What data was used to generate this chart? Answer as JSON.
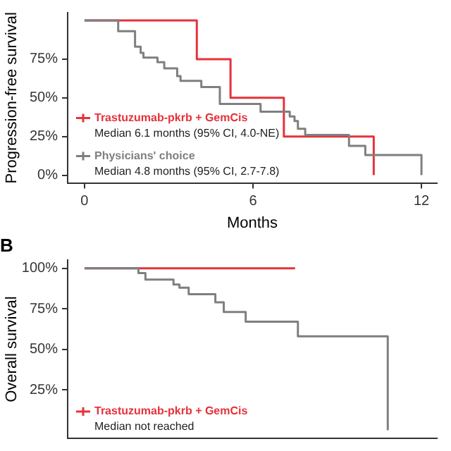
{
  "chart_data": [
    {
      "type": "step",
      "ylabel": "Progression-free survival",
      "xlabel": "Months",
      "xlim": [
        -0.6,
        12.55
      ],
      "xticks": [
        0,
        6,
        12
      ],
      "ylim": [
        -5,
        105
      ],
      "yticks": [
        {
          "value": 0,
          "label": "0%"
        },
        {
          "value": 25,
          "label": "25%"
        },
        {
          "value": 50,
          "label": "50%"
        },
        {
          "value": 75,
          "label": "75%"
        }
      ],
      "grid": false,
      "legend": "bottom left",
      "series": [
        {
          "name": "Trastuzumab-pkrb + GemCis",
          "color": "#e5323b",
          "x": [
            0,
            4.0,
            5.2,
            7.1,
            10.3
          ],
          "values": [
            100,
            75,
            50,
            25,
            0
          ]
        },
        {
          "name": "Physicians' choice",
          "color": "#7f7f7f",
          "x": [
            0,
            1.2,
            1.8,
            2.0,
            2.1,
            2.6,
            2.84,
            3.3,
            3.42,
            4.16,
            4.82,
            6.27,
            7.31,
            7.48,
            7.6,
            7.86,
            9.42,
            10.0,
            12.0
          ],
          "values": [
            100,
            93,
            83,
            79,
            76,
            73,
            69,
            64,
            61,
            57,
            46,
            41,
            38,
            35,
            30,
            26,
            19,
            13,
            0
          ]
        }
      ],
      "annotations": [
        "Median 6.1 months (95% CI, 4.0-NE)",
        "Median 4.8 months (95% CI, 2.7-7.8)"
      ]
    },
    {
      "type": "step",
      "title": "B",
      "ylabel": "Overall survival",
      "xlim": [
        -0.6,
        12.55
      ],
      "ylim": [
        -5,
        105
      ],
      "yticks": [
        {
          "value": 25,
          "label": "25%"
        },
        {
          "value": 50,
          "label": "50%"
        },
        {
          "value": 75,
          "label": "75%"
        },
        {
          "value": 100,
          "label": "100%"
        }
      ],
      "grid": false,
      "legend": "bottom left",
      "tick_labels": "y",
      "series": [
        {
          "name": "Trastuzumab-pkrb + GemCis",
          "color": "#e5323b",
          "x": [
            0,
            7.5
          ],
          "values": [
            100,
            100
          ]
        },
        {
          "color": "#7f7f7f",
          "x": [
            0,
            1.92,
            2.17,
            3.17,
            3.38,
            3.71,
            4.66,
            4.96,
            5.74,
            7.6,
            10.8
          ],
          "values": [
            100,
            97,
            93,
            90,
            88,
            84,
            79,
            73,
            67,
            58,
            0
          ]
        }
      ],
      "annotations": [
        "Median not reached"
      ]
    }
  ]
}
